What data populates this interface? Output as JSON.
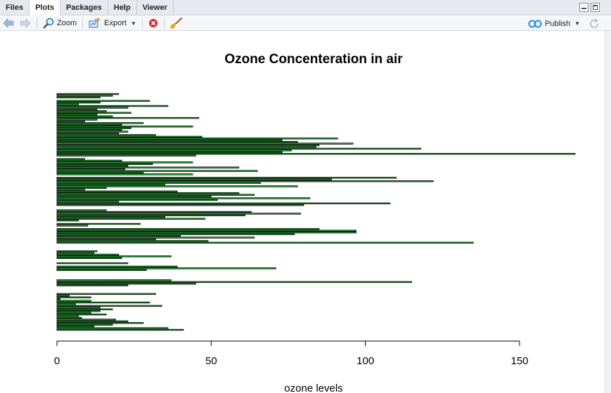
{
  "tabs": [
    {
      "label": "Files"
    },
    {
      "label": "Plots"
    },
    {
      "label": "Packages"
    },
    {
      "label": "Help"
    },
    {
      "label": "Viewer"
    }
  ],
  "toolbar": {
    "zoom_label": "Zoom",
    "export_label": "Export",
    "publish_label": "Publish"
  },
  "icons": [
    "back-arrow-icon",
    "forward-arrow-icon",
    "zoom-icon",
    "export-icon",
    "remove-plot-icon",
    "broom-icon",
    "publish-icon",
    "refresh-icon"
  ],
  "colors": {
    "bar_fill": "#2ecc40",
    "bar_border": "#000000",
    "accent": "#2b79c2"
  },
  "chart_data": {
    "type": "bar",
    "orientation": "horizontal",
    "title": "Ozone Concenteration in air",
    "xlabel": "ozone levels",
    "ylabel": "",
    "xlim": [
      0,
      170
    ],
    "xticks": [
      0,
      50,
      100,
      150
    ],
    "values": [
      41,
      36,
      12,
      18,
      28,
      23,
      19,
      8,
      7,
      16,
      11,
      14,
      18,
      14,
      34,
      6,
      30,
      11,
      1,
      11,
      4,
      32,
      null,
      null,
      null,
      null,
      23,
      45,
      115,
      37,
      null,
      null,
      null,
      null,
      null,
      29,
      71,
      39,
      null,
      23,
      null,
      null,
      21,
      37,
      20,
      12,
      13,
      null,
      null,
      null,
      null,
      135,
      49,
      32,
      64,
      40,
      77,
      97,
      97,
      85,
      null,
      10,
      27,
      null,
      7,
      48,
      35,
      61,
      79,
      63,
      16,
      null,
      null,
      80,
      108,
      20,
      52,
      82,
      50,
      64,
      59,
      39,
      9,
      16,
      78,
      35,
      66,
      122,
      89,
      110,
      null,
      44,
      28,
      65,
      22,
      59,
      23,
      31,
      44,
      21,
      9,
      null,
      45,
      168,
      73,
      76,
      118,
      84,
      85,
      96,
      78,
      73,
      91,
      47,
      32,
      20,
      23,
      21,
      24,
      44,
      21,
      28,
      9,
      13,
      46,
      18,
      13,
      24,
      16,
      13,
      23,
      36,
      7,
      14,
      30,
      null,
      14,
      18,
      20
    ]
  }
}
